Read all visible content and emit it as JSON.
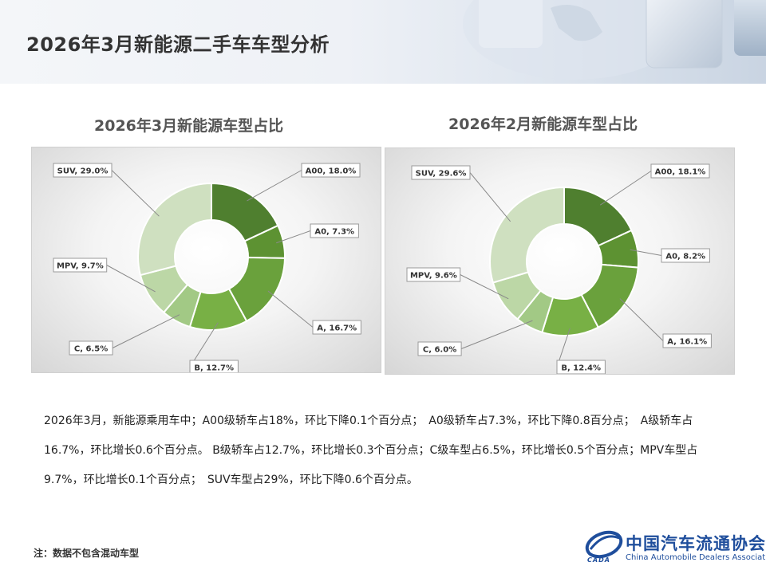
{
  "header": {
    "title": "2026年3月新能源二手车车型分析"
  },
  "charts": {
    "march_title": "2026年3月新能源车型占比",
    "feb_title": "2026年2月新能源车型占比"
  },
  "chart_data": [
    {
      "type": "pie",
      "title": "2026年3月新能源车型占比",
      "categories": [
        "A00",
        "A0",
        "A",
        "B",
        "C",
        "MPV",
        "SUV"
      ],
      "values": [
        18.0,
        7.3,
        16.7,
        12.7,
        6.5,
        9.7,
        29.0
      ],
      "labels": [
        "A00, 18.0%",
        "A0, 7.3%",
        "A, 16.7%",
        "B, 12.7%",
        "C, 6.5%",
        "MPV, 9.7%",
        "SUV, 29.0%"
      ],
      "colors": [
        "#4f7f2f",
        "#5d9232",
        "#6aa13c",
        "#78b045",
        "#a2c985",
        "#bcd7a6",
        "#cfe0c0"
      ],
      "legend": "none"
    },
    {
      "type": "pie",
      "title": "2026年2月新能源车型占比",
      "categories": [
        "A00",
        "A0",
        "A",
        "B",
        "C",
        "MPV",
        "SUV"
      ],
      "values": [
        18.1,
        8.2,
        16.1,
        12.4,
        6.0,
        9.6,
        29.6
      ],
      "labels": [
        "A00, 18.1%",
        "A0, 8.2%",
        "A, 16.1%",
        "B, 12.4%",
        "C, 6.0%",
        "MPV, 9.6%",
        "SUV, 29.6%"
      ],
      "colors": [
        "#4f7f2f",
        "#5d9232",
        "#6aa13c",
        "#78b045",
        "#a2c985",
        "#bcd7a6",
        "#cfe0c0"
      ],
      "legend": "none"
    }
  ],
  "body": {
    "paragraph": "2026年3月，新能源乘用车中；A00级轿车占18%，环比下降0.1个百分点；　A0级轿车占7.3%，环比下降0.8百分点；　A级轿车占16.7%，环比增长0.6个百分点。 B级轿车占12.7%，环比增长0.3个百分点；C级车型占6.5%，环比增长0.5个百分点；MPV车型占9.7%，环比增长0.1个百分点；　SUV车型占29%，环比下降0.6个百分点。"
  },
  "footnote": "注：数据不包含混动车型",
  "logo": {
    "name_cn": "中国汽车流通协会",
    "name_en": "China Automobile Dealers Association",
    "abbr": "CADA"
  }
}
